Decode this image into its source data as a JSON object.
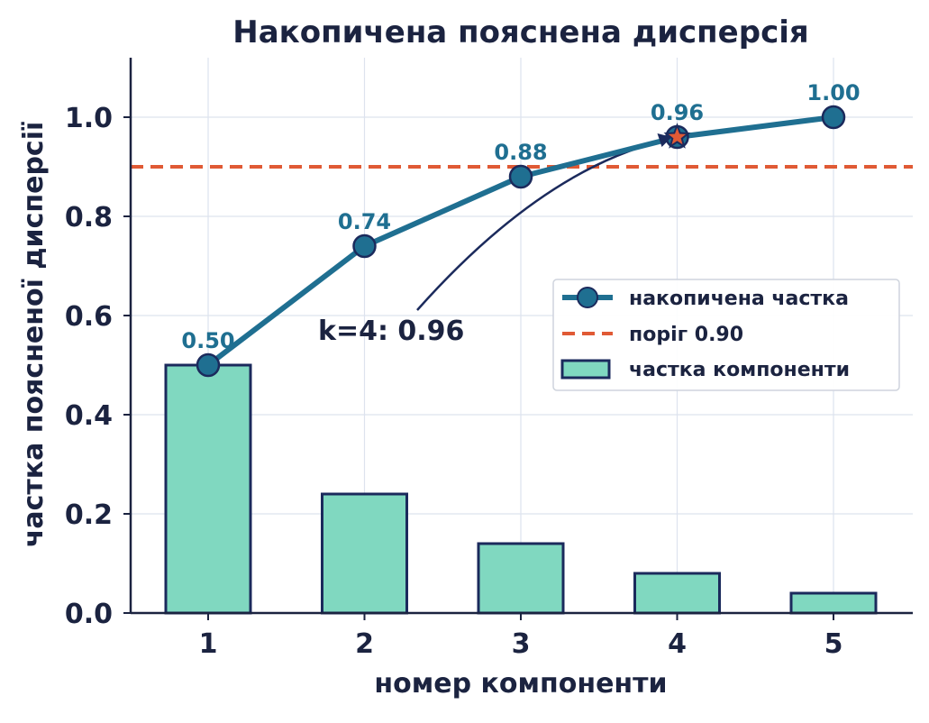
{
  "chart_data": {
    "type": "bar",
    "title": "Накопичена пояснена дисперсія",
    "xlabel": "номер компоненти",
    "ylabel": "частка поясненої дисперсії",
    "categories": [
      1,
      2,
      3,
      4,
      5
    ],
    "category_labels": [
      "1",
      "2",
      "3",
      "4",
      "5"
    ],
    "series": [
      {
        "name": "накопичена частка",
        "type": "line",
        "values": [
          0.5,
          0.74,
          0.88,
          0.96,
          1.0
        ],
        "labels": [
          "0.50",
          "0.74",
          "0.88",
          "0.96",
          "1.00"
        ],
        "color": "#1f6f91"
      },
      {
        "name": "частка компоненти",
        "type": "bar",
        "values": [
          0.5,
          0.24,
          0.14,
          0.08,
          0.04
        ],
        "color": "#80d8c0"
      }
    ],
    "threshold": {
      "name": "поріг 0.90",
      "value": 0.9,
      "color": "#e05a35"
    },
    "annotation": {
      "text": "k=4:  0.96",
      "x": 4,
      "y": 0.96,
      "marker": "star",
      "marker_color": "#e05a35"
    },
    "ylim": [
      0,
      1.12
    ],
    "yticks": [
      0.0,
      0.2,
      0.4,
      0.6,
      0.8,
      1.0
    ],
    "ytick_labels": [
      "0.0",
      "0.2",
      "0.4",
      "0.6",
      "0.8",
      "1.0"
    ],
    "grid": true,
    "legend_position": "center-right",
    "colors": {
      "axis": "#1b2340",
      "grid": "#dde3ee",
      "edge": "#1b2a5c"
    }
  }
}
